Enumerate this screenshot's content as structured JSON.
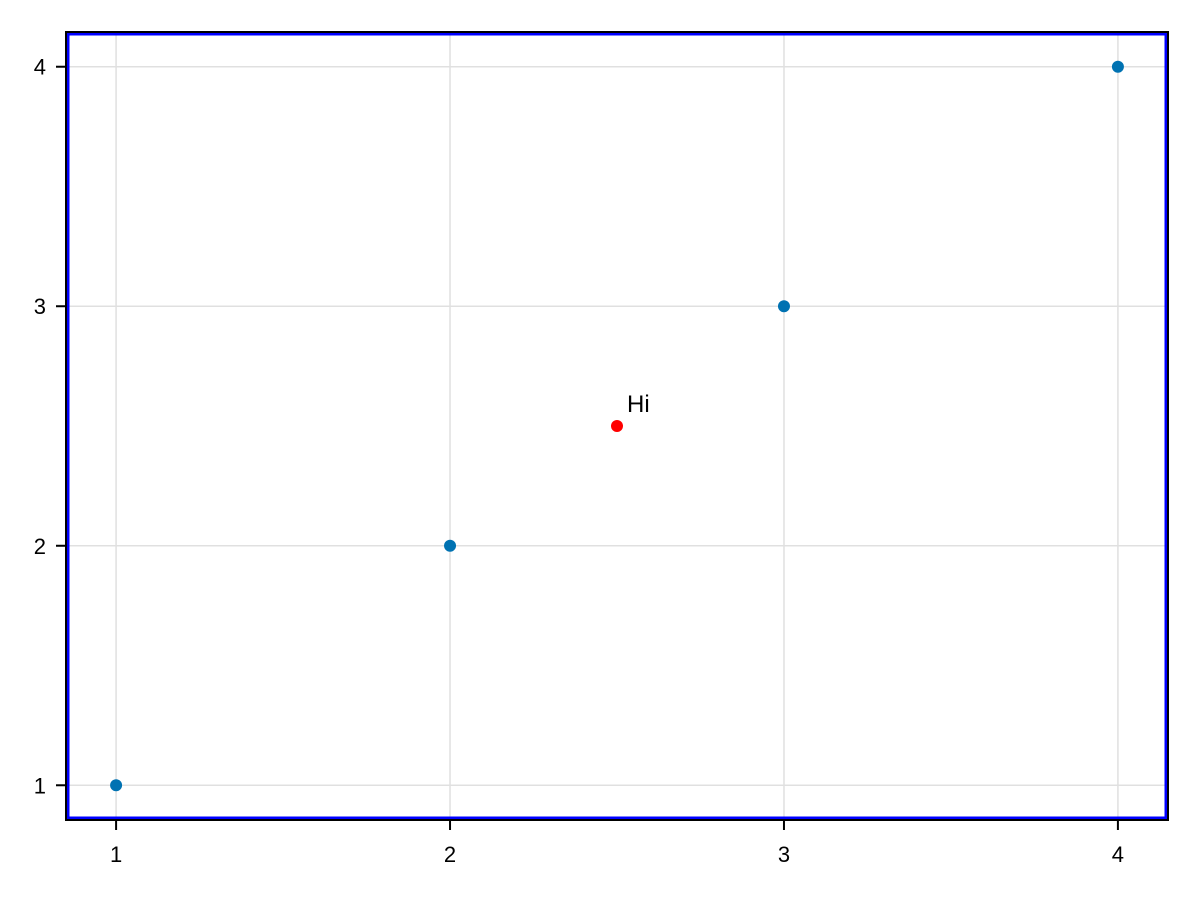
{
  "chart_data": {
    "type": "scatter",
    "title": "",
    "xlabel": "",
    "ylabel": "",
    "xlim": [
      0.85,
      4.15
    ],
    "ylim": [
      0.855,
      4.145
    ],
    "xticks": [
      1,
      2,
      3,
      4
    ],
    "yticks": [
      1,
      2,
      3,
      4
    ],
    "grid": true,
    "series": [
      {
        "x": [
          1,
          2,
          3,
          4
        ],
        "y": [
          1,
          2,
          3,
          4
        ],
        "color": "#0072b2"
      },
      {
        "x": [
          2.5
        ],
        "y": [
          2.5
        ],
        "color": "#ff0000"
      }
    ],
    "annotations": [
      {
        "text": "Hi",
        "x": 2.5,
        "y": 2.5
      }
    ],
    "frame_color": "#000000",
    "border_color": "#0000ff",
    "grid_color": "#e0e0e0"
  }
}
